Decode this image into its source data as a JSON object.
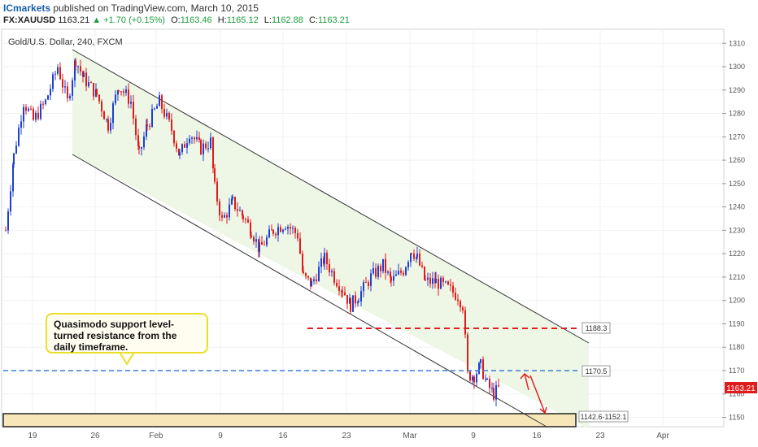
{
  "header": {
    "brand": "ICmarkets",
    "published": " published on TradingView.com, March 10, 2015",
    "symbol": "FX:XAUUSD",
    "last": "1163.21",
    "change": "▲ +1.70 (+0.15%)",
    "open_label": "O:",
    "open": "1163.46",
    "high_label": "H:",
    "high": "1165.12",
    "low_label": "L:",
    "low": "1162.88",
    "close_label": "C:",
    "close": "1163.21"
  },
  "chart_data": {
    "type": "candlestick",
    "title": "Gold/U.S. Dollar, 240, FXCM",
    "ylim": [
      1146,
      1316
    ],
    "y_ticks": [
      1150,
      1160,
      1170,
      1180,
      1190,
      1200,
      1210,
      1220,
      1230,
      1240,
      1250,
      1260,
      1270,
      1280,
      1290,
      1300,
      1310
    ],
    "x_ticks": [
      "19",
      "26",
      "Feb",
      "9",
      "16",
      "23",
      "Mar",
      "9",
      "16",
      "23",
      "Apr"
    ],
    "levels": [
      {
        "label": "1188.3",
        "value": 1188.3,
        "color": "#e02020",
        "style": "dashed"
      },
      {
        "label": "1170.5",
        "value": 1170.5,
        "color": "#3a7fd5",
        "style": "dashed"
      }
    ],
    "zone": {
      "label": "1142.6-1152.1",
      "low": 1142.6,
      "high": 1152.1
    },
    "last_price": {
      "label": "1163.21",
      "value": 1163.21
    },
    "annotation": "Quasimodo support level-turned resistance from the daily timeframe.",
    "colors": {
      "up": "#1f3fd4",
      "down": "#e01b1b",
      "channel_fill": "#eef6e6",
      "zone_fill": "#f7e7b8"
    }
  }
}
